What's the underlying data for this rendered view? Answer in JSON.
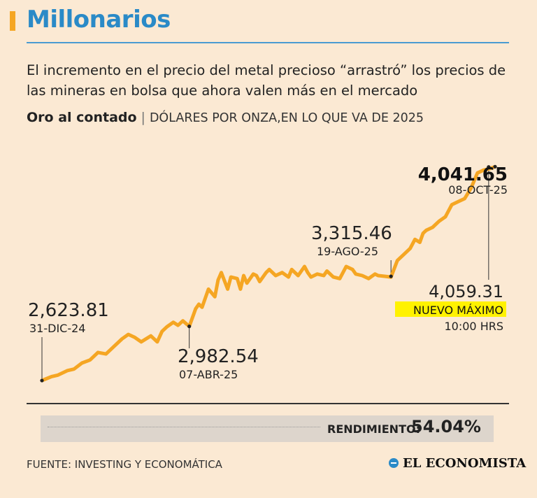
{
  "header": {
    "title": "Millonarios",
    "subtitle": "El incremento en el precio del metal precioso “arrastró” los precios de las mineras en bolsa que ahora valen más en el mercado"
  },
  "chart_heading": {
    "title": "Oro al contado",
    "separator": "|",
    "unit": "DÓLARES POR ONZA,EN LO QUE VA DE 2025"
  },
  "chart_data": {
    "type": "line",
    "title": "Oro al contado",
    "ylabel": "Dólares por onza",
    "xlim": [
      0,
      283
    ],
    "ylim": [
      2550,
      4150
    ],
    "series": [
      {
        "name": "Oro al contado",
        "color": "#f5a623",
        "x": [
          0,
          6,
          10,
          16,
          20,
          25,
          30,
          35,
          40,
          45,
          50,
          54,
          58,
          62,
          65,
          68,
          72,
          75,
          78,
          82,
          85,
          88,
          92,
          95,
          96,
          98,
          100,
          104,
          108,
          110,
          112,
          116,
          118,
          122,
          124,
          126,
          128,
          132,
          134,
          136,
          140,
          142,
          146,
          150,
          154,
          156,
          160,
          164,
          166,
          168,
          172,
          176,
          178,
          182,
          186,
          188,
          190,
          194,
          196,
          200,
          204,
          208,
          210,
          214,
          218,
          222,
          226,
          230,
          233,
          236,
          238,
          240,
          244,
          248,
          252,
          256,
          260,
          264,
          268,
          272,
          276,
          280,
          283
        ],
        "values": [
          2624,
          2650,
          2660,
          2690,
          2700,
          2740,
          2760,
          2810,
          2800,
          2850,
          2900,
          2930,
          2910,
          2880,
          2900,
          2920,
          2880,
          2950,
          2980,
          3010,
          2990,
          3020,
          2983,
          3070,
          3100,
          3130,
          3110,
          3230,
          3180,
          3290,
          3340,
          3230,
          3310,
          3300,
          3230,
          3320,
          3270,
          3330,
          3320,
          3280,
          3340,
          3360,
          3320,
          3340,
          3310,
          3360,
          3320,
          3380,
          3340,
          3310,
          3330,
          3320,
          3350,
          3310,
          3300,
          3340,
          3380,
          3360,
          3330,
          3320,
          3300,
          3330,
          3320,
          3315,
          3310,
          3420,
          3460,
          3500,
          3560,
          3540,
          3600,
          3620,
          3640,
          3680,
          3710,
          3790,
          3810,
          3830,
          3900,
          4000,
          4020,
          4030,
          4042
        ]
      }
    ],
    "annotations": [
      {
        "value": "2,623.81",
        "date": "31-DIC-24",
        "x": 0,
        "y": 2624
      },
      {
        "value": "2,982.54",
        "date": "07-ABR-25",
        "x": 92,
        "y": 2983
      },
      {
        "value": "3,315.46",
        "date": "19-AGO-25",
        "x": 218,
        "y": 3315
      },
      {
        "value": "4,041.65",
        "date": "08-OCT-25",
        "x": 283,
        "y": 4042
      },
      {
        "value": "4,059.31",
        "label": "NUEVO MÁXIMO",
        "time": "10:00 HRS",
        "x": 279,
        "y": 4040
      }
    ]
  },
  "labels": {
    "start_value": "2,623.81",
    "start_date": "31-DIC-24",
    "apr_value": "2,982.54",
    "apr_date": "07-ABR-25",
    "aug_value": "3,315.46",
    "aug_date": "19-AGO-25",
    "end_value": "4,041.65",
    "end_date": "08-OCT-25",
    "max_value": "4,059.31",
    "max_label": "NUEVO MÁXIMO",
    "max_time": "10:00 HRS"
  },
  "footer": {
    "rendimiento_label": "RENDIMIENTO:",
    "rendimiento_value": "54.04%",
    "source": "FUENTE: INVESTING Y ECONOMÁTICA",
    "brand": "EL ECONOMISTA",
    "brand_icon": "el-economista-logo-icon"
  },
  "colors": {
    "line": "#f5a623",
    "highlight": "#fff200",
    "title": "#2a8ac7",
    "background": "#fbe9d3"
  }
}
